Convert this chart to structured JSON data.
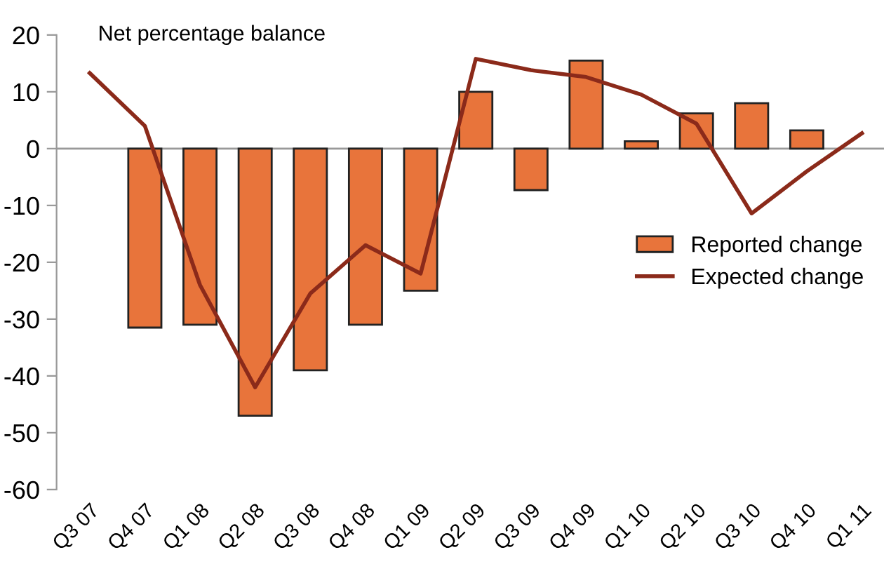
{
  "chart_data": {
    "type": "bar",
    "ylabel": "Net percentage balance",
    "categories": [
      "Q3 07",
      "Q4 07",
      "Q1 08",
      "Q2 08",
      "Q3 08",
      "Q4 08",
      "Q1 09",
      "Q2 09",
      "Q3 09",
      "Q4 09",
      "Q1 10",
      "Q2 10",
      "Q3 10",
      "Q4 10",
      "Q1 11"
    ],
    "ylim": [
      -60,
      20
    ],
    "yticks": [
      -60,
      -50,
      -40,
      -30,
      -20,
      -10,
      0,
      10,
      20
    ],
    "grid": false,
    "legend": "right",
    "ref_lines": [
      {
        "axis": "y",
        "value": 0,
        "color": "#999999"
      }
    ],
    "series": [
      {
        "name": "Reported change",
        "color": "#e8743b",
        "values": [
          null,
          -31.5,
          -31,
          -47,
          -39,
          -31,
          -25,
          10,
          -7.3,
          15.5,
          1.3,
          6.2,
          8,
          3.2,
          null
        ]
      },
      {
        "name": "Expected change",
        "type": "line",
        "color": "#8b2a1a",
        "values": [
          13.3,
          4,
          -24,
          -42,
          -25.5,
          -17,
          -22,
          15.8,
          13.8,
          12.6,
          9.5,
          4.4,
          -11.4,
          -4,
          2.7
        ]
      }
    ]
  }
}
